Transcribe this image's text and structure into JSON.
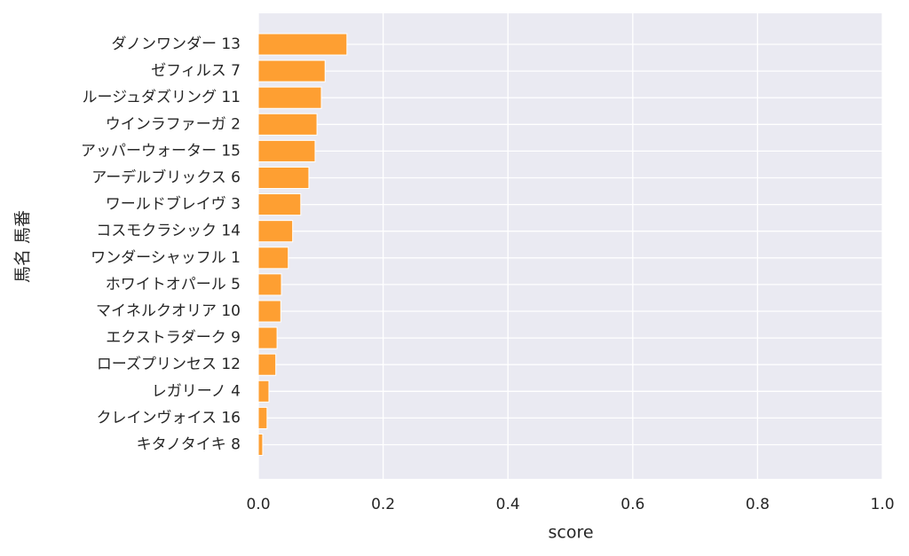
{
  "chart_data": {
    "type": "barh",
    "xlabel": "score",
    "ylabel": "馬名 馬番",
    "categories": [
      "ダノンワンダー 13",
      "ゼフィルス 7",
      "ルージュダズリング 11",
      "ウインラファーガ 2",
      "アッパーウォーター 15",
      "アーデルブリックス 6",
      "ワールドブレイヴ 3",
      "コスモクラシック 14",
      "ワンダーシャッフル 1",
      "ホワイトオパール 5",
      "マイネルクオリア 10",
      "エクストラダーク 9",
      "ローズプリンセス 12",
      "レガリーノ 4",
      "クレインヴォイス 16",
      "キタノタイキ 8"
    ],
    "values": [
      0.142,
      0.107,
      0.101,
      0.094,
      0.091,
      0.081,
      0.068,
      0.055,
      0.048,
      0.037,
      0.036,
      0.03,
      0.028,
      0.017,
      0.014,
      0.007
    ],
    "color": "#fe9f32",
    "xlim": [
      0,
      1
    ],
    "xticks": [
      {
        "value": 0,
        "label": "0.0"
      },
      {
        "value": 0.2,
        "label": "0.2"
      },
      {
        "value": 0.4,
        "label": "0.4"
      },
      {
        "value": 0.6,
        "label": "0.6"
      },
      {
        "value": 0.8,
        "label": "0.8"
      },
      {
        "value": 1,
        "label": "1.0"
      }
    ],
    "grid": true
  }
}
